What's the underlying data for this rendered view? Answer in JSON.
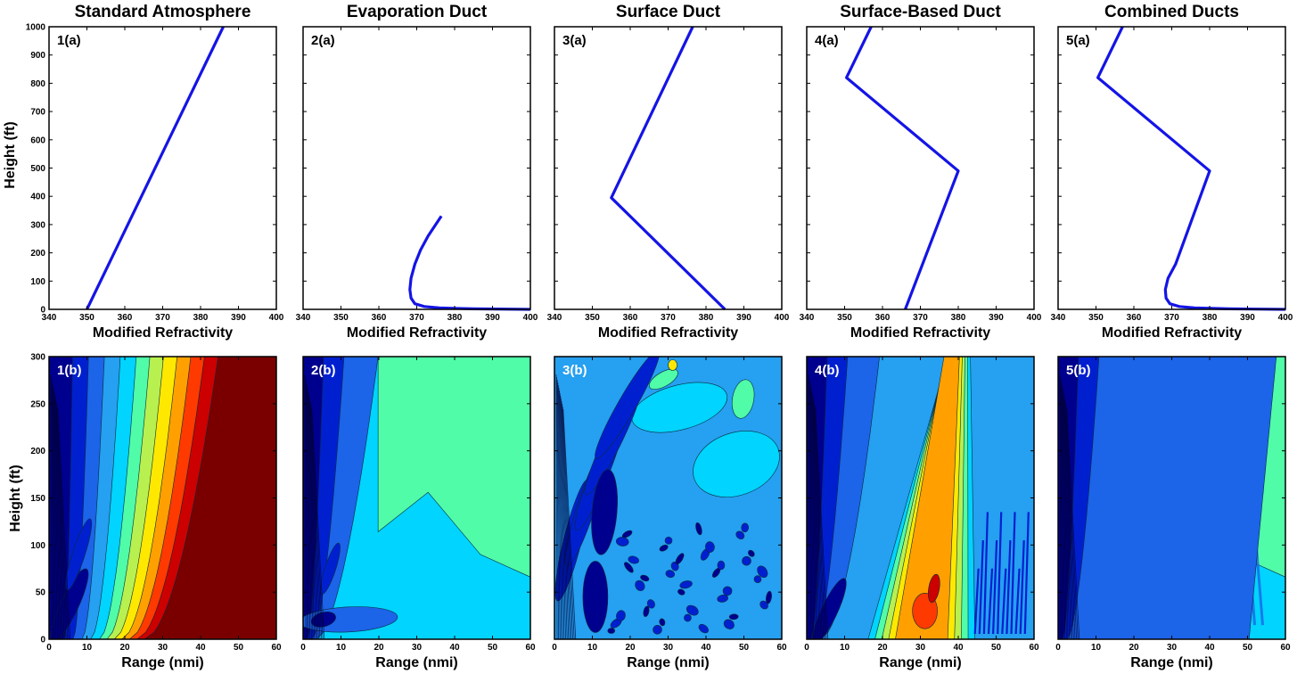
{
  "figure": {
    "top_row_ylabel": "Height (ft)",
    "bottom_row_ylabel": "Height (ft)"
  },
  "colors": {
    "profile_line": "#1414e6",
    "panel_label_top": "#000000",
    "panel_label_bottom": "#ffffff",
    "colormap": [
      "#00008f",
      "#0020d0",
      "#1c64e8",
      "#26a0f0",
      "#00d4ff",
      "#50fca8",
      "#b8f050",
      "#ffe800",
      "#ffa000",
      "#ff3a00",
      "#cc0000",
      "#7a0000"
    ]
  },
  "chart_data": [
    {
      "type": "line",
      "panel": "1(a)",
      "title": "Standard Atmosphere",
      "xlabel": "Modified Refractivity",
      "ylabel": "Height (ft)",
      "xlim": [
        340,
        400
      ],
      "ylim": [
        0,
        1000
      ],
      "xticks": [
        340,
        350,
        360,
        370,
        380,
        390,
        400
      ],
      "yticks": [
        0,
        100,
        200,
        300,
        400,
        500,
        600,
        700,
        800,
        900,
        1000
      ],
      "series": [
        {
          "x": [
            350,
            386
          ],
          "y": [
            0,
            1000
          ]
        }
      ]
    },
    {
      "type": "line",
      "panel": "2(a)",
      "title": "Evaporation Duct",
      "xlabel": "Modified Refractivity",
      "xlim": [
        340,
        400
      ],
      "ylim": [
        0,
        1000
      ],
      "xticks": [
        340,
        350,
        360,
        370,
        380,
        390,
        400
      ],
      "series": [
        {
          "x": [
            400,
            385,
            376,
            372,
            369.5,
            368.5,
            368.2,
            368.5,
            369.5,
            371,
            373,
            376.5
          ],
          "y": [
            0,
            2,
            5,
            10,
            20,
            40,
            70,
            110,
            160,
            210,
            260,
            330
          ]
        }
      ]
    },
    {
      "type": "line",
      "panel": "3(a)",
      "title": "Surface Duct",
      "xlabel": "Modified Refractivity",
      "xlim": [
        340,
        400
      ],
      "ylim": [
        0,
        1000
      ],
      "xticks": [
        340,
        350,
        360,
        370,
        380,
        390,
        400
      ],
      "series": [
        {
          "x": [
            385,
            355,
            376.5
          ],
          "y": [
            0,
            395,
            1000
          ]
        }
      ]
    },
    {
      "type": "line",
      "panel": "4(a)",
      "title": "Surface-Based Duct",
      "xlabel": "Modified Refractivity",
      "xlim": [
        340,
        400
      ],
      "ylim": [
        0,
        1000
      ],
      "xticks": [
        340,
        350,
        360,
        370,
        380,
        390,
        400
      ],
      "series": [
        {
          "x": [
            366,
            380,
            350.5,
            357
          ],
          "y": [
            0,
            490,
            820,
            1000
          ]
        }
      ]
    },
    {
      "type": "line",
      "panel": "5(a)",
      "title": "Combined Ducts",
      "xlabel": "Modified Refractivity",
      "xlim": [
        340,
        400
      ],
      "ylim": [
        0,
        1000
      ],
      "xticks": [
        340,
        350,
        360,
        370,
        380,
        390,
        400
      ],
      "series": [
        {
          "x": [
            400,
            385,
            376,
            372,
            369.5,
            368.5,
            368.3,
            369,
            371,
            380,
            350.5,
            357
          ],
          "y": [
            0,
            2,
            5,
            10,
            20,
            40,
            70,
            110,
            160,
            490,
            820,
            1000
          ]
        }
      ]
    },
    {
      "type": "heatmap",
      "panel": "1(b)",
      "xlabel": "Range (nmi)",
      "ylabel": "Height (ft)",
      "xlim": [
        0,
        60
      ],
      "ylim": [
        0,
        300
      ],
      "xticks": [
        0,
        10,
        20,
        30,
        40,
        50,
        60
      ],
      "yticks": [
        0,
        50,
        100,
        150,
        200,
        250,
        300
      ],
      "pattern": "standard"
    },
    {
      "type": "heatmap",
      "panel": "2(b)",
      "xlabel": "Range (nmi)",
      "xlim": [
        0,
        60
      ],
      "ylim": [
        0,
        300
      ],
      "xticks": [
        0,
        10,
        20,
        30,
        40,
        50,
        60
      ],
      "pattern": "evaporation"
    },
    {
      "type": "heatmap",
      "panel": "3(b)",
      "xlabel": "Range (nmi)",
      "xlim": [
        0,
        60
      ],
      "ylim": [
        0,
        300
      ],
      "xticks": [
        0,
        10,
        20,
        30,
        40,
        50,
        60
      ],
      "pattern": "surface"
    },
    {
      "type": "heatmap",
      "panel": "4(b)",
      "xlabel": "Range (nmi)",
      "xlim": [
        0,
        60
      ],
      "ylim": [
        0,
        300
      ],
      "xticks": [
        0,
        10,
        20,
        30,
        40,
        50,
        60
      ],
      "pattern": "surface-based"
    },
    {
      "type": "heatmap",
      "panel": "5(b)",
      "xlabel": "Range (nmi)",
      "xlim": [
        0,
        60
      ],
      "ylim": [
        0,
        300
      ],
      "xticks": [
        0,
        10,
        20,
        30,
        40,
        50,
        60
      ],
      "pattern": "combined"
    }
  ]
}
